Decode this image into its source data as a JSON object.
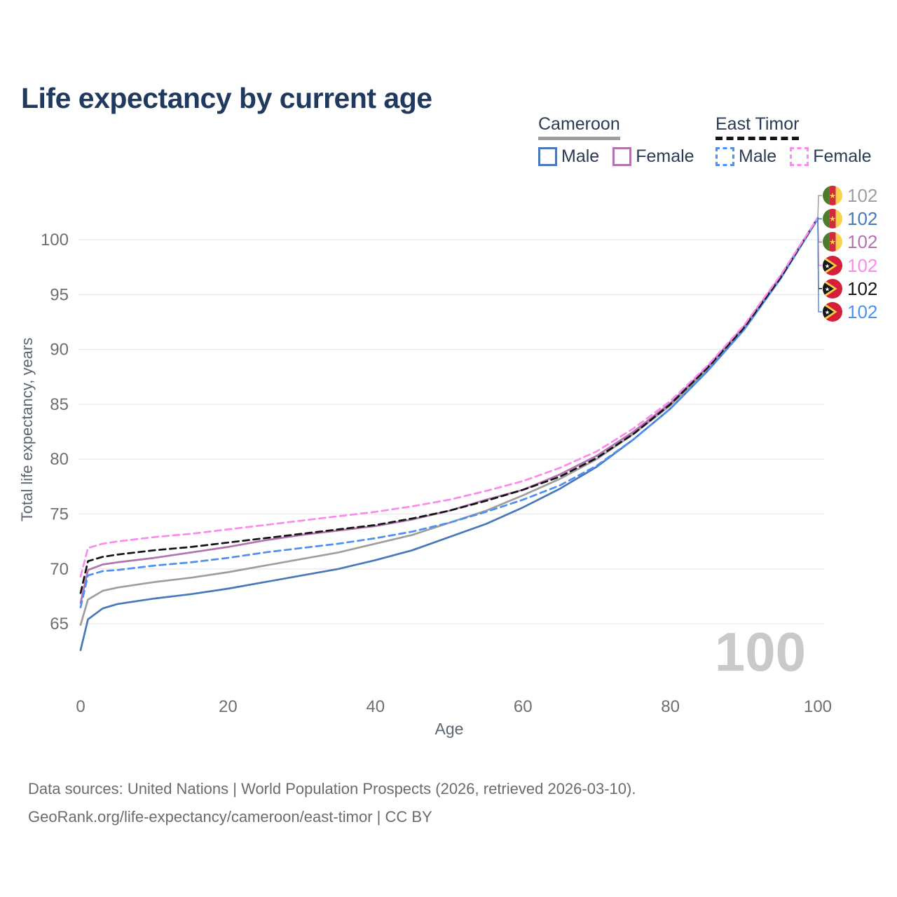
{
  "title": "Life expectancy by current age",
  "legend": {
    "groups": [
      {
        "name": "Cameroon",
        "underline": "solid",
        "underline_color": "#9e9e9e",
        "items": [
          {
            "label": "Male",
            "color": "#4878b9",
            "style": "solid"
          },
          {
            "label": "Female",
            "color": "#b273b0",
            "style": "solid"
          }
        ]
      },
      {
        "name": "East Timor",
        "underline": "dashed",
        "underline_color": "#141414",
        "items": [
          {
            "label": "Male",
            "color": "#4d8ff2",
            "style": "dashed"
          },
          {
            "label": "Female",
            "color": "#fb8aec",
            "style": "dashed"
          }
        ]
      }
    ]
  },
  "chart_data": {
    "type": "line",
    "title": "Life expectancy by current age",
    "xlabel": "Age",
    "ylabel": "Total life expectancy, years",
    "xticks": [
      0,
      20,
      40,
      60,
      80,
      100
    ],
    "yticks": [
      65,
      70,
      75,
      80,
      85,
      90,
      95,
      100
    ],
    "xlim": [
      0,
      100
    ],
    "ylim": [
      62,
      103
    ],
    "grid": "horizontal-only",
    "watermark": "100",
    "series": [
      {
        "name": "Cameroon Both sexes",
        "country": "Cameroon",
        "sex": "Both",
        "color": "#9e9e9e",
        "style": "solid",
        "points": [
          [
            0,
            64.9
          ],
          [
            1,
            67.2
          ],
          [
            3,
            68.0
          ],
          [
            5,
            68.3
          ],
          [
            10,
            68.8
          ],
          [
            15,
            69.2
          ],
          [
            20,
            69.7
          ],
          [
            25,
            70.3
          ],
          [
            30,
            70.9
          ],
          [
            35,
            71.5
          ],
          [
            40,
            72.3
          ],
          [
            45,
            73.1
          ],
          [
            50,
            74.2
          ],
          [
            55,
            75.3
          ],
          [
            60,
            76.7
          ],
          [
            65,
            78.2
          ],
          [
            70,
            80.0
          ],
          [
            75,
            82.3
          ],
          [
            80,
            84.9
          ],
          [
            85,
            88.2
          ],
          [
            90,
            92.0
          ],
          [
            95,
            96.6
          ],
          [
            100,
            101.9
          ]
        ]
      },
      {
        "name": "Cameroon Male",
        "country": "Cameroon",
        "sex": "Male",
        "color": "#4878b9",
        "style": "solid",
        "points": [
          [
            0,
            62.6
          ],
          [
            1,
            65.4
          ],
          [
            3,
            66.4
          ],
          [
            5,
            66.8
          ],
          [
            10,
            67.3
          ],
          [
            15,
            67.7
          ],
          [
            20,
            68.2
          ],
          [
            25,
            68.8
          ],
          [
            30,
            69.4
          ],
          [
            35,
            70.0
          ],
          [
            40,
            70.8
          ],
          [
            45,
            71.7
          ],
          [
            50,
            72.9
          ],
          [
            55,
            74.1
          ],
          [
            60,
            75.6
          ],
          [
            65,
            77.3
          ],
          [
            70,
            79.3
          ],
          [
            75,
            81.8
          ],
          [
            80,
            84.6
          ],
          [
            85,
            88.0
          ],
          [
            90,
            91.8
          ],
          [
            95,
            96.5
          ],
          [
            100,
            101.9
          ]
        ]
      },
      {
        "name": "Cameroon Female",
        "country": "Cameroon",
        "sex": "Female",
        "color": "#b273b0",
        "style": "solid",
        "points": [
          [
            0,
            66.9
          ],
          [
            1,
            69.9
          ],
          [
            3,
            70.4
          ],
          [
            5,
            70.6
          ],
          [
            10,
            71.0
          ],
          [
            15,
            71.5
          ],
          [
            20,
            72.0
          ],
          [
            25,
            72.6
          ],
          [
            30,
            73.1
          ],
          [
            35,
            73.5
          ],
          [
            40,
            73.9
          ],
          [
            45,
            74.5
          ],
          [
            50,
            75.3
          ],
          [
            55,
            76.3
          ],
          [
            60,
            77.2
          ],
          [
            65,
            78.6
          ],
          [
            70,
            80.3
          ],
          [
            75,
            82.5
          ],
          [
            80,
            85.1
          ],
          [
            85,
            88.4
          ],
          [
            90,
            92.1
          ],
          [
            95,
            96.7
          ],
          [
            100,
            102.0
          ]
        ]
      },
      {
        "name": "East Timor Male",
        "country": "East Timor",
        "sex": "Male",
        "color": "#4d8ff2",
        "style": "dashed",
        "points": [
          [
            0,
            66.5
          ],
          [
            1,
            69.4
          ],
          [
            3,
            69.8
          ],
          [
            5,
            69.9
          ],
          [
            10,
            70.3
          ],
          [
            15,
            70.6
          ],
          [
            20,
            71.0
          ],
          [
            25,
            71.5
          ],
          [
            30,
            71.9
          ],
          [
            35,
            72.3
          ],
          [
            40,
            72.8
          ],
          [
            45,
            73.4
          ],
          [
            50,
            74.2
          ],
          [
            55,
            75.2
          ],
          [
            60,
            76.3
          ],
          [
            65,
            77.6
          ],
          [
            70,
            79.4
          ],
          [
            75,
            81.8
          ],
          [
            80,
            84.6
          ],
          [
            85,
            88.0
          ],
          [
            90,
            91.8
          ],
          [
            95,
            96.5
          ],
          [
            100,
            101.9
          ]
        ]
      },
      {
        "name": "East Timor Both sexes",
        "country": "East Timor",
        "sex": "Both",
        "color": "#141414",
        "style": "dashed",
        "points": [
          [
            0,
            67.8
          ],
          [
            1,
            70.7
          ],
          [
            3,
            71.1
          ],
          [
            5,
            71.3
          ],
          [
            10,
            71.7
          ],
          [
            15,
            72.0
          ],
          [
            20,
            72.4
          ],
          [
            25,
            72.8
          ],
          [
            30,
            73.2
          ],
          [
            35,
            73.6
          ],
          [
            40,
            74.0
          ],
          [
            45,
            74.6
          ],
          [
            50,
            75.3
          ],
          [
            55,
            76.2
          ],
          [
            60,
            77.2
          ],
          [
            65,
            78.4
          ],
          [
            70,
            80.1
          ],
          [
            75,
            82.3
          ],
          [
            80,
            85.0
          ],
          [
            85,
            88.3
          ],
          [
            90,
            92.0
          ],
          [
            95,
            96.6
          ],
          [
            100,
            102.0
          ]
        ]
      },
      {
        "name": "East Timor Female",
        "country": "East Timor",
        "sex": "Female",
        "color": "#fb8aec",
        "style": "dashed",
        "points": [
          [
            0,
            69.3
          ],
          [
            1,
            71.9
          ],
          [
            3,
            72.3
          ],
          [
            5,
            72.5
          ],
          [
            10,
            72.9
          ],
          [
            15,
            73.2
          ],
          [
            20,
            73.6
          ],
          [
            25,
            74.0
          ],
          [
            30,
            74.4
          ],
          [
            35,
            74.8
          ],
          [
            40,
            75.2
          ],
          [
            45,
            75.7
          ],
          [
            50,
            76.3
          ],
          [
            55,
            77.1
          ],
          [
            60,
            78.0
          ],
          [
            65,
            79.2
          ],
          [
            70,
            80.7
          ],
          [
            75,
            82.8
          ],
          [
            80,
            85.3
          ],
          [
            85,
            88.5
          ],
          [
            90,
            92.2
          ],
          [
            95,
            96.8
          ],
          [
            100,
            102.0
          ]
        ]
      }
    ],
    "end_labels": [
      {
        "flag": "cameroon",
        "country": "Cameroon",
        "value": "102",
        "color": "#9e9e9e"
      },
      {
        "flag": "cameroon",
        "country": "Cameroon",
        "value": "102",
        "color": "#4878b9"
      },
      {
        "flag": "cameroon",
        "country": "Cameroon",
        "value": "102",
        "color": "#b273b0"
      },
      {
        "flag": "east-timor",
        "country": "East Timor",
        "value": "102",
        "color": "#fb8aec"
      },
      {
        "flag": "east-timor",
        "country": "East Timor",
        "value": "102",
        "color": "#141414"
      },
      {
        "flag": "east-timor",
        "country": "East Timor",
        "value": "102",
        "color": "#4d8ff2"
      }
    ]
  },
  "source": {
    "line1": "Data sources: United Nations | World Population Prospects (2026, retrieved 2026-03-10).",
    "line2": "GeoRank.org/life-expectancy/cameroon/east-timor | CC BY"
  }
}
